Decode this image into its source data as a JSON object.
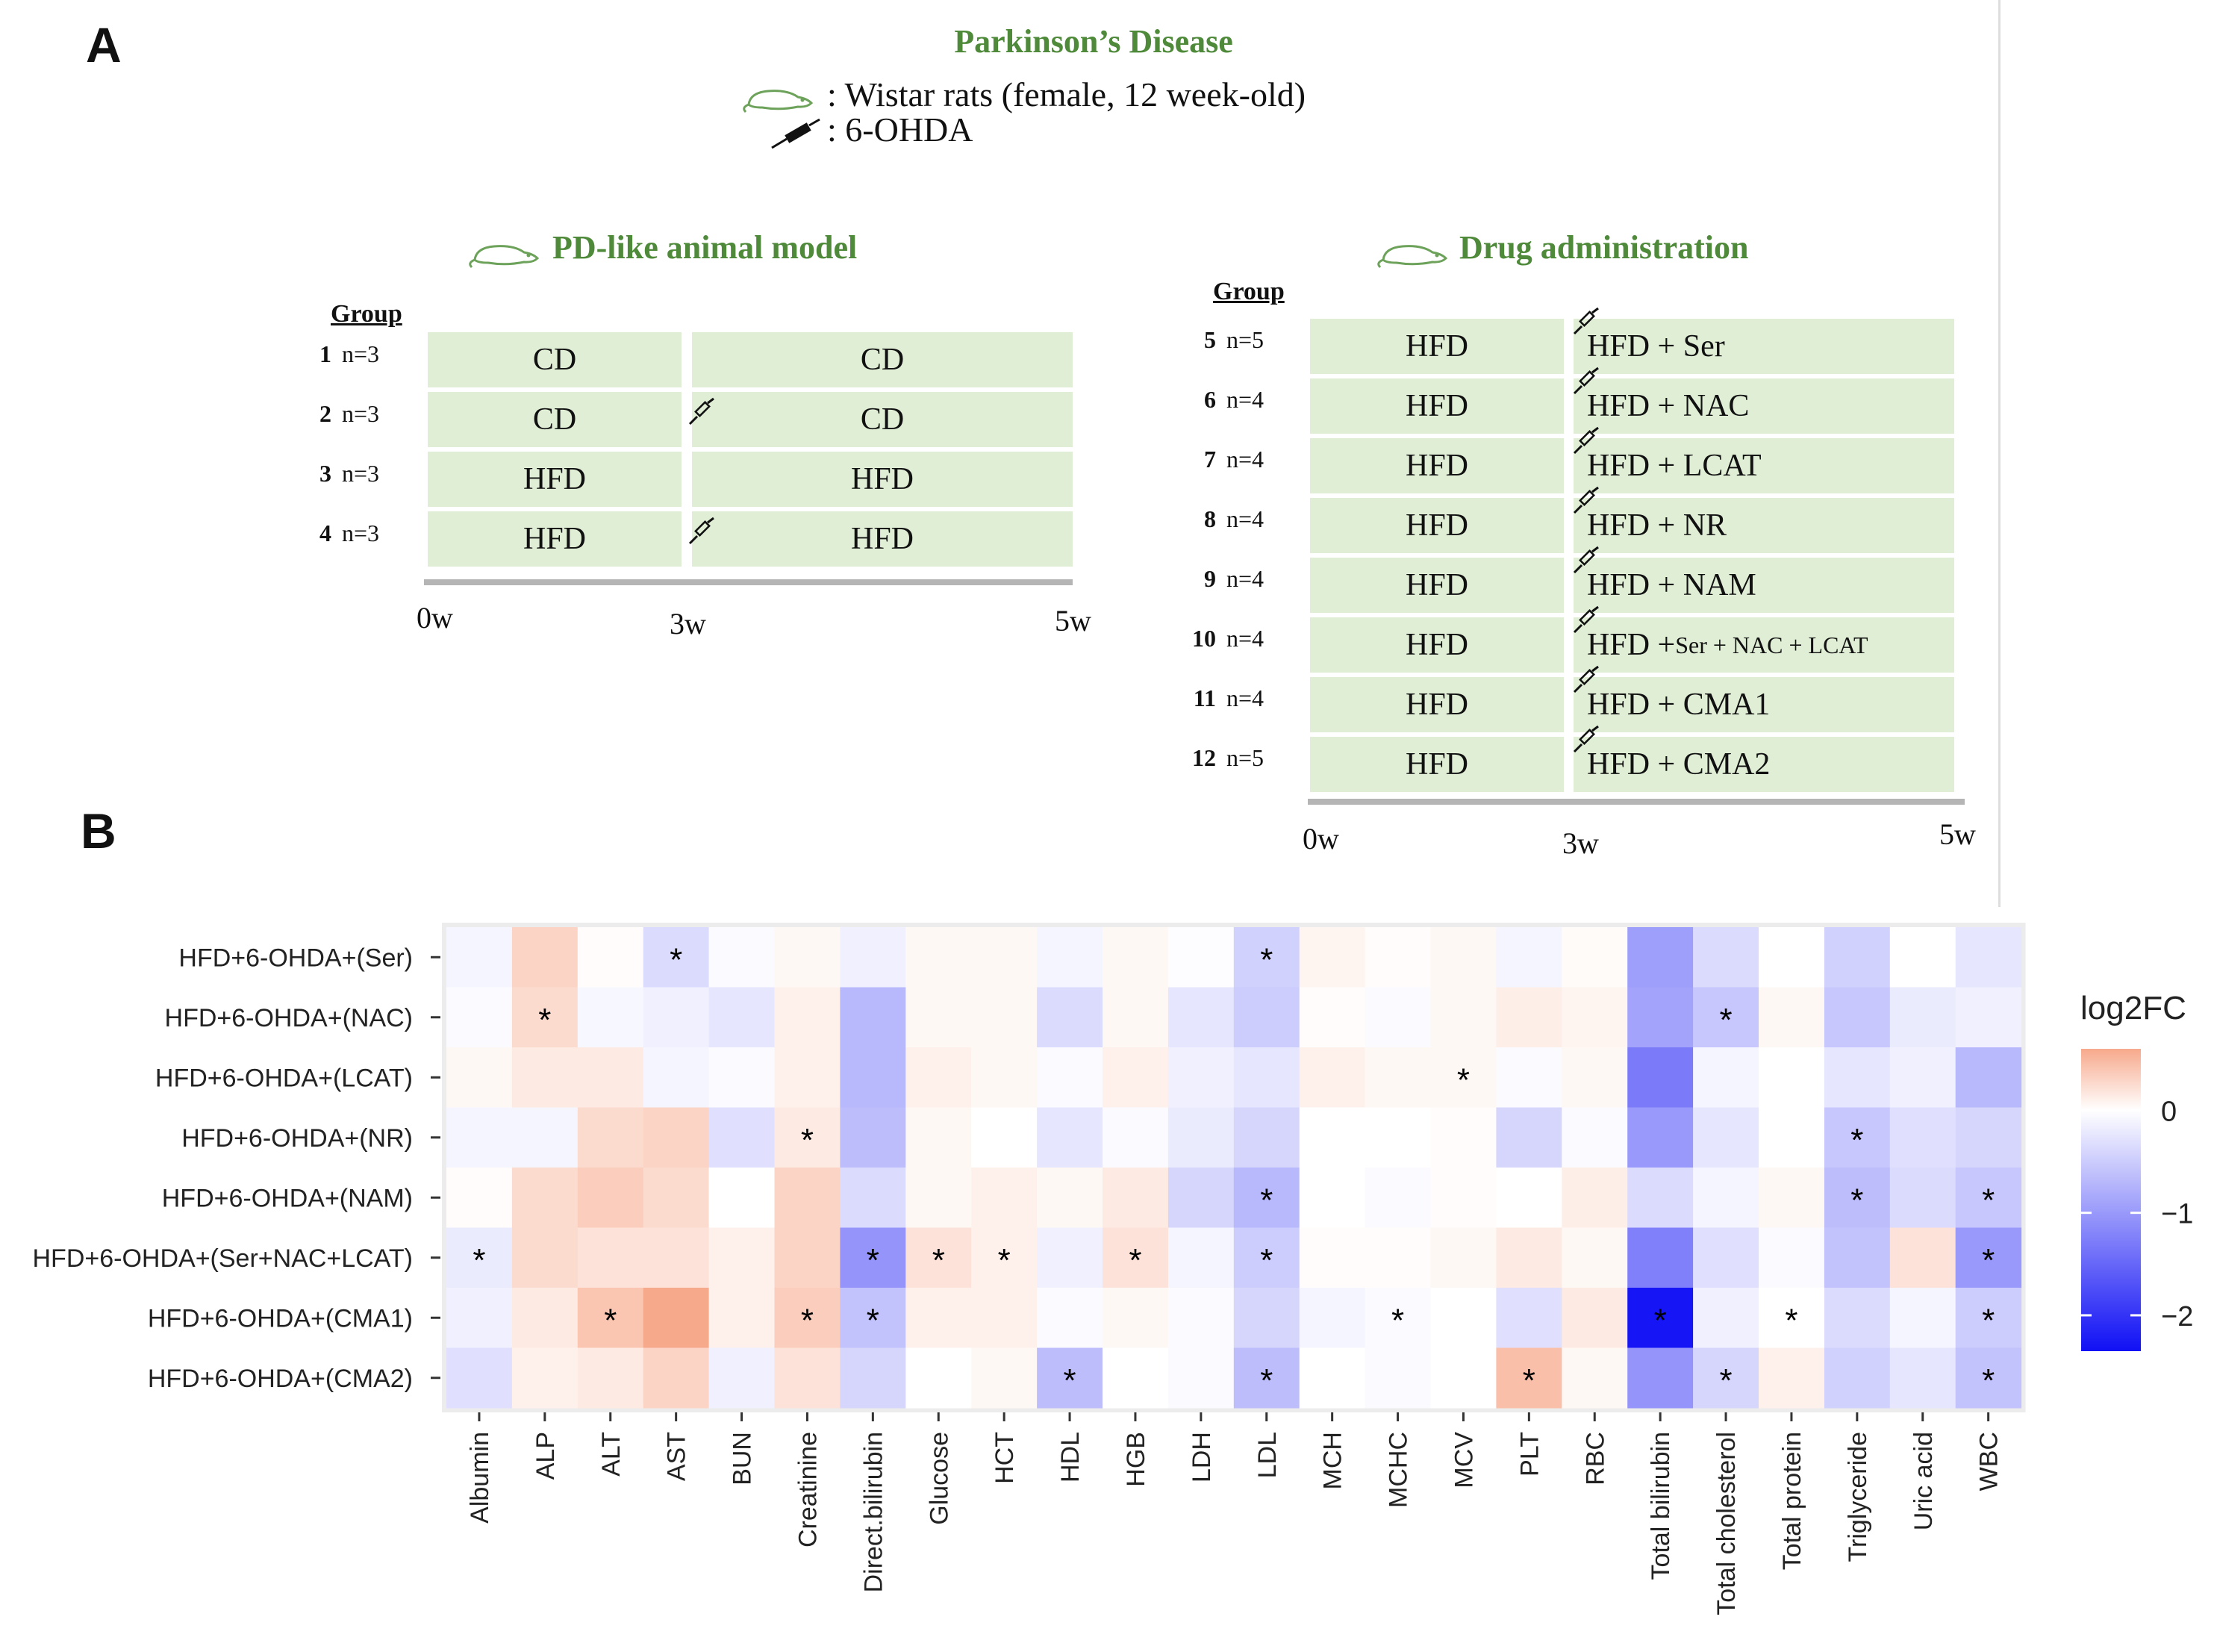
{
  "panel_a": {
    "label": "A",
    "title": "Parkinson’s Disease",
    "legend_rat": ": Wistar rats (female, 12 week-old)",
    "legend_drug": ": 6-OHDA",
    "pd_model": {
      "title": "PD-like animal model",
      "group_header": "Group",
      "rows": [
        {
          "num": "1",
          "n": "n=3",
          "phase1": "CD",
          "phase2": "CD"
        },
        {
          "num": "2",
          "n": "n=3",
          "phase1": "CD",
          "phase2": "CD"
        },
        {
          "num": "3",
          "n": "n=3",
          "phase1": "HFD",
          "phase2": "HFD"
        },
        {
          "num": "4",
          "n": "n=3",
          "phase1": "HFD",
          "phase2": "HFD"
        }
      ],
      "timeline": [
        "0w",
        "3w",
        "5w"
      ]
    },
    "drug_admin": {
      "title": "Drug administration",
      "group_header": "Group",
      "rows": [
        {
          "num": "5",
          "n": "n=5",
          "phase1": "HFD",
          "phase2": "HFD +  Ser"
        },
        {
          "num": "6",
          "n": "n=4",
          "phase1": "HFD",
          "phase2": "HFD + NAC"
        },
        {
          "num": "7",
          "n": "n=4",
          "phase1": "HFD",
          "phase2": "HFD + LCAT"
        },
        {
          "num": "8",
          "n": "n=4",
          "phase1": "HFD",
          "phase2": "HFD + NR"
        },
        {
          "num": "9",
          "n": "n=4",
          "phase1": "HFD",
          "phase2": "HFD + NAM"
        },
        {
          "num": "10",
          "n": "n=4",
          "phase1": "HFD",
          "phase2": "HFD + ",
          "phase2_small": "Ser + NAC + LCAT"
        },
        {
          "num": "11",
          "n": "n=4",
          "phase1": "HFD",
          "phase2": "HFD + CMA1"
        },
        {
          "num": "12",
          "n": "n=5",
          "phase1": "HFD",
          "phase2": "HFD + CMA2"
        }
      ],
      "timeline": [
        "0w",
        "3w",
        "5w"
      ]
    }
  },
  "panel_b": {
    "label": "B"
  },
  "chart_data": {
    "type": "heatmap",
    "title": "",
    "xlabel": "",
    "ylabel": "",
    "legend_title": "log2FC",
    "colorbar_ticks": [
      0,
      -1,
      -2
    ],
    "colorbar_tick_labels": [
      "0",
      "−1",
      "−2"
    ],
    "colorbar_range": [
      -2.35,
      0.6
    ],
    "colors": {
      "positive": "#f7a98c",
      "zero": "#ffffff",
      "negative": "#1010f5",
      "panel_bg": "#ececec"
    },
    "rows": [
      "HFD+6-OHDA+(Ser)",
      "HFD+6-OHDA+(NAC)",
      "HFD+6-OHDA+(LCAT)",
      "HFD+6-OHDA+(NR)",
      "HFD+6-OHDA+(NAM)",
      "HFD+6-OHDA+(Ser+NAC+LCAT)",
      "HFD+6-OHDA+(CMA1)",
      "HFD+6-OHDA+(CMA2)"
    ],
    "columns": [
      "Albumin",
      "ALP",
      "ALT",
      "AST",
      "BUN",
      "Creatinine",
      "Direct.bilirubin",
      "Glucose",
      "HCT",
      "HDL",
      "HGB",
      "LDH",
      "LDL",
      "MCH",
      "MCHC",
      "MCV",
      "PLT",
      "RBC",
      "Total bilirubin",
      "Total cholesterol",
      "Total protein",
      "Triglyceride",
      "Uric acid",
      "WBC"
    ],
    "values": [
      [
        -0.1,
        0.3,
        0.02,
        -0.35,
        -0.05,
        0.05,
        -0.15,
        0.05,
        0.05,
        -0.1,
        0.05,
        -0.02,
        -0.45,
        0.08,
        0.02,
        0.05,
        -0.1,
        0.03,
        -0.95,
        -0.35,
        0.0,
        -0.45,
        0.0,
        -0.25
      ],
      [
        -0.05,
        0.25,
        -0.08,
        -0.15,
        -0.25,
        0.1,
        -0.7,
        0.05,
        0.05,
        -0.35,
        0.05,
        -0.25,
        -0.5,
        0.02,
        -0.05,
        0.05,
        0.12,
        0.08,
        -0.9,
        -0.55,
        0.05,
        -0.55,
        -0.2,
        -0.15
      ],
      [
        0.05,
        0.15,
        0.15,
        -0.1,
        -0.05,
        0.1,
        -0.7,
        0.1,
        0.05,
        -0.05,
        0.1,
        -0.15,
        -0.25,
        0.1,
        0.05,
        0.05,
        -0.05,
        0.05,
        -1.3,
        -0.1,
        0.0,
        -0.25,
        -0.15,
        -0.7
      ],
      [
        -0.1,
        -0.1,
        0.25,
        0.3,
        -0.3,
        0.15,
        -0.65,
        0.05,
        0.0,
        -0.25,
        -0.05,
        -0.2,
        -0.4,
        0.0,
        0.0,
        0.02,
        -0.4,
        -0.05,
        -1.0,
        -0.25,
        0.0,
        -0.55,
        -0.3,
        -0.4
      ],
      [
        0.02,
        0.25,
        0.35,
        0.25,
        0.0,
        0.3,
        -0.35,
        0.05,
        0.1,
        0.05,
        0.15,
        -0.4,
        -0.7,
        0.0,
        -0.05,
        0.02,
        0.0,
        0.12,
        -0.35,
        -0.1,
        0.05,
        -0.65,
        -0.35,
        -0.55
      ],
      [
        -0.2,
        0.25,
        0.2,
        0.2,
        0.1,
        0.3,
        -1.05,
        0.2,
        0.1,
        -0.15,
        0.2,
        -0.1,
        -0.5,
        0.02,
        0.02,
        0.05,
        0.15,
        0.05,
        -1.25,
        -0.3,
        -0.05,
        -0.6,
        0.2,
        -1.0
      ],
      [
        -0.15,
        0.15,
        0.4,
        0.6,
        0.1,
        0.35,
        -0.6,
        0.1,
        0.1,
        -0.05,
        0.05,
        -0.05,
        -0.4,
        -0.1,
        -0.05,
        0.0,
        -0.3,
        0.15,
        -2.3,
        -0.15,
        0.0,
        -0.35,
        -0.1,
        -0.5
      ],
      [
        -0.3,
        0.1,
        0.15,
        0.3,
        -0.15,
        0.2,
        -0.4,
        0.0,
        0.05,
        -0.65,
        0.0,
        -0.05,
        -0.65,
        0.0,
        -0.05,
        0.0,
        0.45,
        0.05,
        -1.05,
        -0.4,
        0.1,
        -0.45,
        -0.25,
        -0.6
      ]
    ],
    "significance_marker": "*",
    "significant": [
      [
        0,
        3
      ],
      [
        0,
        12
      ],
      [
        1,
        1
      ],
      [
        1,
        19
      ],
      [
        2,
        15
      ],
      [
        3,
        5
      ],
      [
        3,
        21
      ],
      [
        4,
        12
      ],
      [
        4,
        21
      ],
      [
        4,
        23
      ],
      [
        5,
        0
      ],
      [
        5,
        6
      ],
      [
        5,
        7
      ],
      [
        5,
        8
      ],
      [
        5,
        10
      ],
      [
        5,
        12
      ],
      [
        5,
        23
      ],
      [
        6,
        2
      ],
      [
        6,
        5
      ],
      [
        6,
        6
      ],
      [
        6,
        14
      ],
      [
        6,
        18
      ],
      [
        6,
        20
      ],
      [
        6,
        23
      ],
      [
        7,
        9
      ],
      [
        7,
        12
      ],
      [
        7,
        16
      ],
      [
        7,
        19
      ],
      [
        7,
        23
      ]
    ]
  }
}
